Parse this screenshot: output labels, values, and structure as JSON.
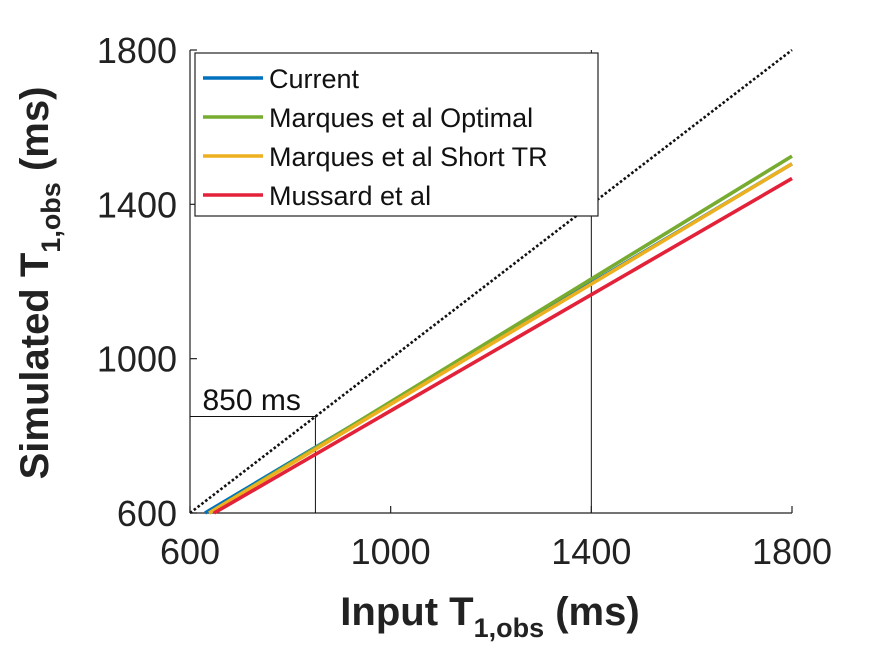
{
  "chart_data": {
    "type": "line",
    "xlabel": {
      "main": "Input T",
      "sub": "1,obs",
      "unit": " (ms)"
    },
    "ylabel": {
      "main": "Simulated T",
      "sub": "1,obs",
      "unit": " (ms)"
    },
    "xlim": [
      600,
      1800
    ],
    "ylim": [
      600,
      1800
    ],
    "xticks": [
      600,
      1000,
      1400,
      1800
    ],
    "yticks": [
      600,
      1000,
      1400,
      1800
    ],
    "grid": false,
    "legend_position": "top-left",
    "identity_line": {
      "x": [
        600,
        1800
      ],
      "y": [
        600,
        1800
      ],
      "color": "#111111",
      "style": "dotted"
    },
    "series": [
      {
        "name": "Current",
        "color": "#0072BD",
        "x": [
          630,
          1800
        ],
        "y": [
          600,
          1505
        ]
      },
      {
        "name": "Marques et al Optimal",
        "color": "#77AC30",
        "x": [
          638,
          1800
        ],
        "y": [
          600,
          1525
        ]
      },
      {
        "name": "Marques et al Short TR",
        "color": "#EDB120",
        "x": [
          638,
          1800
        ],
        "y": [
          600,
          1505
        ]
      },
      {
        "name": "Mussard et al",
        "color": "#E3223A",
        "x": [
          648,
          1800
        ],
        "y": [
          600,
          1467
        ]
      }
    ],
    "reference_lines": [
      {
        "type": "box",
        "x": 850,
        "y": 850
      },
      {
        "type": "vline",
        "x": 1400,
        "y_top": 1800
      }
    ],
    "annotations": [
      {
        "text": "850 ms",
        "x": 605,
        "y": 875
      }
    ]
  }
}
